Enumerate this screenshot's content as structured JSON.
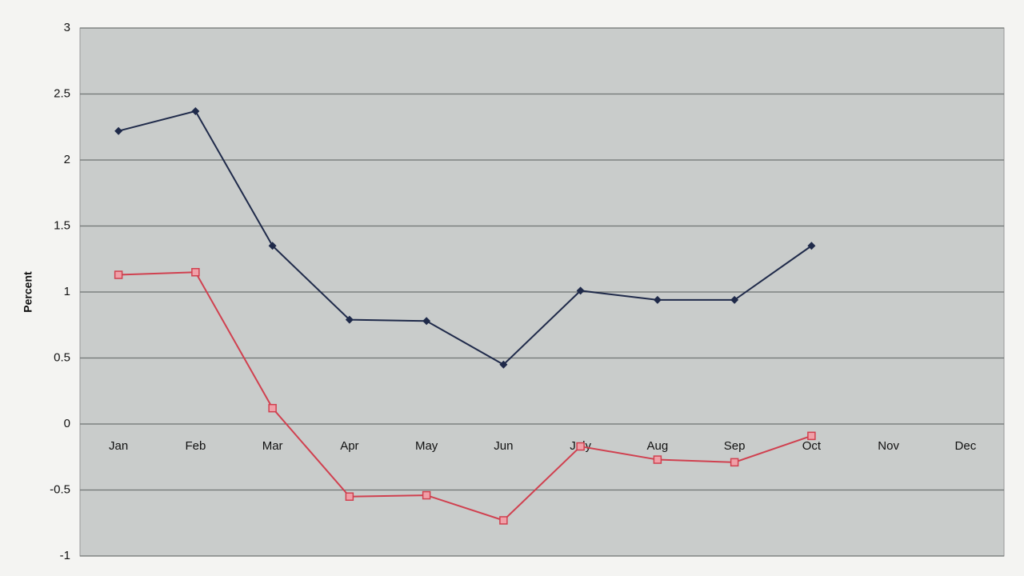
{
  "chart_data": {
    "type": "line",
    "y_label": "Percent",
    "categories": [
      "Jan",
      "Feb",
      "Mar",
      "Apr",
      "May",
      "Jun",
      "July",
      "Aug",
      "Sep",
      "Oct",
      "Nov",
      "Dec"
    ],
    "series": [
      {
        "color": "#1f2a4a",
        "marker": "diamond",
        "values": [
          2.22,
          2.37,
          1.35,
          0.79,
          0.78,
          0.45,
          1.01,
          0.94,
          0.94,
          1.35,
          null,
          null
        ]
      },
      {
        "color": "#d0404f",
        "marker": "square",
        "values": [
          1.13,
          1.15,
          0.12,
          -0.55,
          -0.54,
          -0.73,
          -0.17,
          -0.27,
          -0.29,
          -0.09,
          null,
          null
        ]
      }
    ],
    "ylim": [
      -1,
      3
    ],
    "yticks": [
      -1,
      -0.5,
      0,
      0.5,
      1,
      1.5,
      2,
      2.5,
      3
    ],
    "grid": true
  }
}
